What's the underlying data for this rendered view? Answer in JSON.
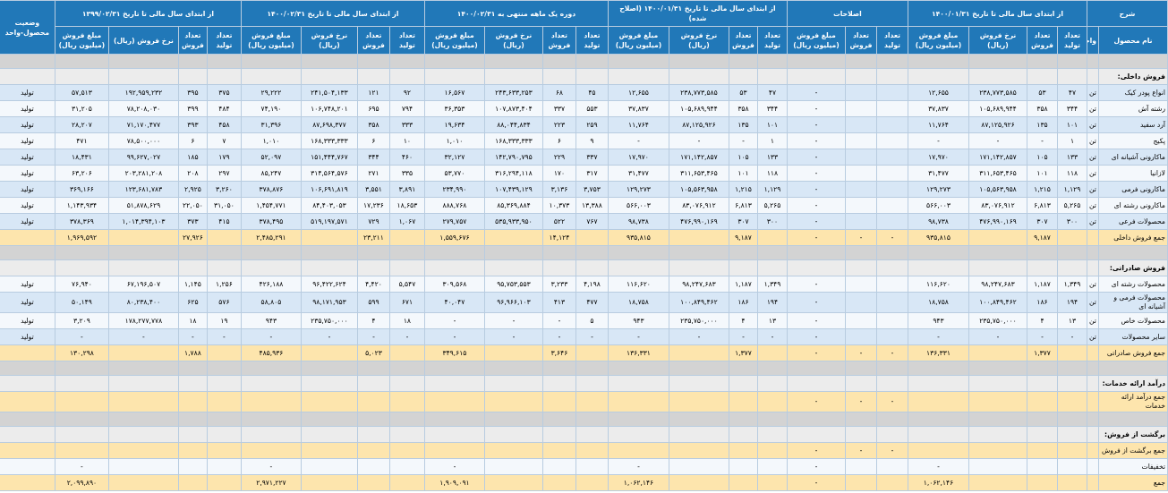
{
  "header": {
    "description": "شرح",
    "product_name": "نام محصول",
    "unit": "واحد",
    "status": "وضعیت محصول-واحد",
    "groups": [
      {
        "title": "از ابتدای سال مالی تا تاریخ ۱۴۰۰/۰۱/۳۱",
        "columns": [
          "تعداد تولید",
          "تعداد فروش",
          "نرخ فروش (ریال)",
          "مبلغ فروش (میلیون ریال)"
        ]
      },
      {
        "title": "اصلاحات",
        "columns": [
          "تعداد تولید",
          "تعداد فروش",
          "مبلغ فروش (میلیون ریال)"
        ]
      },
      {
        "title": "از ابتدای سال مالی تا تاریخ ۱۴۰۰/۰۱/۳۱ (اصلاح شده)",
        "columns": [
          "تعداد تولید",
          "تعداد فروش",
          "نرخ فروش (ریال)",
          "مبلغ فروش (میلیون ریال)"
        ]
      },
      {
        "title": "دوره یک ماهه منتهی به ۱۴۰۰/۰۲/۳۱",
        "columns": [
          "تعداد تولید",
          "تعداد فروش",
          "نرخ فروش (ریال)",
          "مبلغ فروش (میلیون ریال)"
        ]
      },
      {
        "title": "از ابتدای سال مالی تا تاریخ ۱۴۰۰/۰۲/۳۱",
        "columns": [
          "تعداد تولید",
          "تعداد فروش",
          "نرخ فروش (ریال)",
          "مبلغ فروش (میلیون ریال)"
        ]
      },
      {
        "title": "از ابتدای سال مالی تا تاریخ ۱۳۹۹/۰۲/۳۱",
        "columns": [
          "تعداد تولید",
          "تعداد فروش",
          "نرخ فروش (ریال)",
          "مبلغ فروش (میلیون ریال)"
        ]
      }
    ]
  },
  "table": {
    "rows": [
      {
        "kind": "spacer"
      },
      {
        "kind": "section",
        "cells": [
          "فروش داخلی:"
        ]
      },
      {
        "kind": "data",
        "cells": [
          "انواع پودر کیک",
          "تن",
          "۴۷",
          "۵۳",
          "۲۳۸,۷۷۳,۵۸۵",
          "۱۲,۶۵۵",
          null,
          null,
          "-",
          "۴۷",
          "۵۳",
          "۲۳۸,۷۷۳,۵۸۵",
          "۱۲,۶۵۵",
          "۴۵",
          "۶۸",
          "۲۴۳,۶۳۳,۲۵۳",
          "۱۶,۵۶۷",
          "۹۲",
          "۱۲۱",
          "۲۴۱,۵۰۴,۱۳۳",
          "۲۹,۲۲۲",
          "۳۷۵",
          "۳۹۵",
          "۱۹۲,۹۵۹,۲۳۲",
          "۵۷,۵۱۳",
          "تولید"
        ]
      },
      {
        "kind": "data",
        "cells": [
          "رشته آش",
          "تن",
          "۳۴۴",
          "۳۵۸",
          "۱۰۵,۶۸۹,۹۴۴",
          "۳۷,۸۳۷",
          null,
          null,
          "-",
          "۳۴۴",
          "۳۵۸",
          "۱۰۵,۶۸۹,۹۴۴",
          "۳۷,۸۳۷",
          "۵۵۳",
          "۳۳۷",
          "۱۰۷,۸۷۳,۴۰۴",
          "۳۶,۳۵۳",
          "۷۹۴",
          "۶۹۵",
          "۱۰۶,۷۴۸,۲۰۱",
          "۷۴,۱۹۰",
          "۴۸۴",
          "۳۹۹",
          "۷۸,۲۰۸,۰۳۰",
          "۳۱,۲۰۵",
          "تولید"
        ]
      },
      {
        "kind": "data",
        "cells": [
          "آرد سفید",
          "تن",
          "۱۰۱",
          "۱۳۵",
          "۸۷,۱۲۵,۹۲۶",
          "۱۱,۷۶۴",
          null,
          null,
          "-",
          "۱۰۱",
          "۱۳۵",
          "۸۷,۱۲۵,۹۲۶",
          "۱۱,۷۶۴",
          "۲۵۹",
          "۲۲۳",
          "۸۸,۰۴۴,۸۳۴",
          "۱۹,۶۳۴",
          "۳۳۳",
          "۳۵۸",
          "۸۷,۶۹۸,۳۷۷",
          "۳۱,۳۹۶",
          "۴۵۸",
          "۳۹۳",
          "۷۱,۱۷۰,۴۷۷",
          "۲۸,۲۰۷",
          "تولید"
        ]
      },
      {
        "kind": "data",
        "cells": [
          "پکیج",
          "تن",
          "۱",
          "-",
          "-",
          "-",
          null,
          null,
          "-",
          "۱",
          "-",
          "-",
          "-",
          "۹",
          "۶",
          "۱۶۸,۳۳۳,۳۳۳",
          "۱,۰۱۰",
          "۱۰",
          "۶",
          "۱۶۸,۳۳۳,۳۳۳",
          "۱,۰۱۰",
          "۷",
          "۶",
          "۷۸,۵۰۰,۰۰۰",
          "۴۷۱",
          "تولید"
        ]
      },
      {
        "kind": "data",
        "cells": [
          "ماکارونی آشیانه ای",
          "تن",
          "۱۳۳",
          "۱۰۵",
          "۱۷۱,۱۴۲,۸۵۷",
          "۱۷,۹۷۰",
          null,
          null,
          "-",
          "۱۳۳",
          "۱۰۵",
          "۱۷۱,۱۴۲,۸۵۷",
          "۱۷,۹۷۰",
          "۳۳۷",
          "۲۲۹",
          "۱۴۲,۷۹۰,۷۹۵",
          "۳۲,۱۲۷",
          "۴۶۰",
          "۳۴۴",
          "۱۵۱,۴۴۴,۷۶۷",
          "۵۲,۰۹۷",
          "۱۷۹",
          "۱۸۵",
          "۹۹,۶۲۷,۰۲۷",
          "۱۸,۴۳۱",
          "تولید"
        ]
      },
      {
        "kind": "data",
        "cells": [
          "لازانیا",
          "تن",
          "۱۱۸",
          "۱۰۱",
          "۳۱۱,۶۵۳,۴۶۵",
          "۳۱,۴۷۷",
          null,
          null,
          "-",
          "۱۱۸",
          "۱۰۱",
          "۳۱۱,۶۵۳,۴۶۵",
          "۳۱,۴۷۷",
          "۳۱۷",
          "۱۷۰",
          "۳۱۶,۲۹۴,۱۱۸",
          "۵۳,۷۷۰",
          "۳۳۵",
          "۲۷۱",
          "۳۱۴,۵۶۴,۵۷۶",
          "۸۵,۲۴۷",
          "۲۹۷",
          "۲۰۸",
          "۲۰۳,۲۸۱,۲۰۸",
          "۶۳,۲۰۶",
          "تولید"
        ]
      },
      {
        "kind": "data",
        "cells": [
          "ماکارونی فرمی",
          "تن",
          "۱,۱۲۹",
          "۱,۲۱۵",
          "۱۰۵,۵۶۳,۹۵۸",
          "۱۲۹,۲۷۳",
          null,
          null,
          "-",
          "۱,۱۲۹",
          "۱,۲۱۵",
          "۱۰۵,۵۶۳,۹۵۸",
          "۱۲۹,۲۷۳",
          "۳,۷۵۳",
          "۳,۱۳۶",
          "۱۰۷,۴۳۹,۱۲۹",
          "۲۳۴,۹۹۰",
          "۳,۸۹۱",
          "۳,۵۵۱",
          "۱۰۶,۶۹۱,۸۱۹",
          "۳۷۸,۸۷۶",
          "۳,۲۶۰",
          "۲,۹۲۵",
          "۱۲۳,۶۸۱,۷۸۳",
          "۳۶۹,۱۶۶",
          "تولید"
        ]
      },
      {
        "kind": "data",
        "cells": [
          "ماکارونی رشته ای",
          "تن",
          "۵,۲۶۵",
          "۶,۸۱۳",
          "۸۳,۰۷۶,۹۱۲",
          "۵۶۶,۰۰۳",
          null,
          null,
          "-",
          "۵,۲۶۵",
          "۶,۸۱۳",
          "۸۳,۰۷۶,۹۱۲",
          "۵۶۶,۰۰۳",
          "۱۳,۳۸۸",
          "۱۰,۳۷۳",
          "۸۵,۳۶۹,۸۸۴",
          "۸۸۸,۷۶۸",
          "۱۸,۶۵۳",
          "۱۷,۲۳۶",
          "۸۴,۴۰۳,۰۵۳",
          "۱,۴۵۴,۷۷۱",
          "۳۱,۰۵۰",
          "۲۲,۰۵۰",
          "۵۱,۸۷۸,۶۲۹",
          "۱,۱۴۳,۹۳۴",
          "تولید"
        ]
      },
      {
        "kind": "data",
        "cells": [
          "محصولات فرعی",
          "تن",
          "۳۰۰",
          "۳۰۷",
          "۴۷۶,۹۹۰,۱۶۹",
          "۹۸,۷۳۸",
          null,
          null,
          "-",
          "۳۰۰",
          "۳۰۷",
          "۴۷۶,۹۹۰,۱۶۹",
          "۹۸,۷۳۸",
          "۷۶۷",
          "۵۲۲",
          "۵۳۵,۹۳۳,۹۵۰",
          "۲۷۹,۷۵۷",
          "۱,۰۶۷",
          "۷۲۹",
          "۵۱۹,۱۹۷,۵۷۱",
          "۳۷۸,۴۹۵",
          "۴۱۵",
          "۳۷۳",
          "۱,۰۱۴,۳۹۴,۱۰۳",
          "۳۷۸,۳۶۹",
          "تولید"
        ]
      },
      {
        "kind": "total",
        "cells": [
          "جمع فروش داخلی",
          null,
          null,
          "۹,۱۸۷",
          null,
          "۹۳۵,۸۱۵",
          "-",
          "-",
          "-",
          null,
          "۹,۱۸۷",
          null,
          "۹۳۵,۸۱۵",
          null,
          "۱۴,۱۲۴",
          null,
          "۱,۵۵۹,۶۷۶",
          null,
          "۲۳,۲۱۱",
          null,
          "۲,۴۸۵,۲۹۱",
          null,
          "۲۷,۹۲۶",
          null,
          "۱,۹۶۹,۵۹۲",
          null
        ]
      },
      {
        "kind": "spacer"
      },
      {
        "kind": "section",
        "cells": [
          "فروش صادراتی:"
        ]
      },
      {
        "kind": "data",
        "cells": [
          "محصولات رشته ای",
          "تن",
          "۱,۳۴۹",
          "۱,۱۸۷",
          "۹۸,۲۴۷,۶۸۳",
          "۱۱۶,۶۲۰",
          null,
          null,
          "-",
          "۱,۳۴۹",
          "۱,۱۸۷",
          "۹۸,۲۴۷,۶۸۳",
          "۱۱۶,۶۲۰",
          "۴,۱۹۸",
          "۳,۲۳۳",
          "۹۵,۷۵۳,۵۵۳",
          "۳۰۹,۵۶۸",
          "۵,۵۴۷",
          "۴,۴۲۰",
          "۹۶,۴۲۲,۶۲۴",
          "۴۲۶,۱۸۸",
          "۱,۲۵۶",
          "۱,۱۴۵",
          "۶۷,۱۹۶,۵۰۷",
          "۷۶,۹۴۰",
          "تولید"
        ]
      },
      {
        "kind": "data",
        "cells": [
          "محصولات فرمی و آشیانه ای",
          "تن",
          "۱۹۴",
          "۱۸۶",
          "۱۰۰,۸۴۹,۴۶۲",
          "۱۸,۷۵۸",
          null,
          null,
          "-",
          "۱۹۴",
          "۱۸۶",
          "۱۰۰,۸۴۹,۴۶۲",
          "۱۸,۷۵۸",
          "۴۷۷",
          "۴۱۳",
          "۹۶,۹۶۶,۱۰۳",
          "۴۰,۰۴۷",
          "۶۷۱",
          "۵۹۹",
          "۹۸,۱۷۱,۹۵۳",
          "۵۸,۸۰۵",
          "۵۷۶",
          "۶۲۵",
          "۸۰,۲۳۸,۴۰۰",
          "۵۰,۱۴۹",
          "تولید"
        ]
      },
      {
        "kind": "data",
        "cells": [
          "محصولات خاص",
          "تن",
          "۱۳",
          "۴",
          "۲۳۵,۷۵۰,۰۰۰",
          "۹۴۳",
          null,
          null,
          "-",
          "۱۳",
          "۴",
          "۲۳۵,۷۵۰,۰۰۰",
          "۹۴۳",
          "۵",
          "-",
          "-",
          "-",
          "۱۸",
          "۴",
          "۲۳۵,۷۵۰,۰۰۰",
          "۹۴۳",
          "۱۹",
          "۱۸",
          "۱۷۸,۲۷۷,۷۷۸",
          "۳,۲۰۹",
          "تولید"
        ]
      },
      {
        "kind": "data",
        "cells": [
          "سایر محصولات",
          "تن",
          "-",
          "-",
          "-",
          "-",
          null,
          null,
          "-",
          "-",
          "-",
          "-",
          "-",
          "-",
          "-",
          "-",
          "-",
          "-",
          "-",
          "-",
          "-",
          "-",
          "-",
          "-",
          "-",
          "تولید"
        ]
      },
      {
        "kind": "total",
        "cells": [
          "جمع فروش صادراتی",
          null,
          null,
          "۱,۳۷۷",
          null,
          "۱۳۶,۳۳۱",
          "-",
          "-",
          "-",
          null,
          "۱,۳۷۷",
          null,
          "۱۳۶,۳۳۱",
          null,
          "۳,۶۴۶",
          null,
          "۳۴۹,۶۱۵",
          null,
          "۵,۰۲۳",
          null,
          "۴۸۵,۹۳۶",
          null,
          "۱,۷۸۸",
          null,
          "۱۳۰,۲۹۸",
          null
        ]
      },
      {
        "kind": "spacer"
      },
      {
        "kind": "section",
        "cells": [
          "درآمد ارائه خدمات:"
        ]
      },
      {
        "kind": "total",
        "cells": [
          "جمع درآمد ارائه خدمات",
          null,
          null,
          null,
          null,
          null,
          "-",
          "-",
          "-",
          null,
          null,
          null,
          null,
          null,
          null,
          null,
          null,
          null,
          null,
          null,
          null,
          null,
          null,
          null,
          null,
          null
        ]
      },
      {
        "kind": "spacer"
      },
      {
        "kind": "section",
        "cells": [
          "برگشت از فروش:"
        ]
      },
      {
        "kind": "total",
        "cells": [
          "جمع برگشت از فروش",
          null,
          null,
          null,
          null,
          null,
          "-",
          "-",
          "-",
          null,
          null,
          null,
          null,
          null,
          null,
          null,
          null,
          null,
          null,
          null,
          null,
          null,
          null,
          null,
          null,
          null
        ]
      },
      {
        "kind": "data",
        "cells": [
          "تخفیفات",
          null,
          null,
          null,
          null,
          "-",
          null,
          null,
          "-",
          null,
          null,
          null,
          "-",
          null,
          null,
          null,
          "-",
          null,
          null,
          null,
          "-",
          null,
          null,
          null,
          "-",
          null
        ]
      },
      {
        "kind": "total",
        "cells": [
          "جمع",
          null,
          null,
          null,
          null,
          "۱,۰۶۲,۱۴۶",
          null,
          null,
          "-",
          null,
          null,
          null,
          "۱,۰۶۲,۱۴۶",
          null,
          null,
          null,
          "۱,۹۰۹,۰۹۱",
          null,
          null,
          null,
          "۲,۹۷۱,۲۲۷",
          null,
          null,
          null,
          "۲,۰۹۹,۸۹۰",
          null
        ]
      }
    ]
  }
}
